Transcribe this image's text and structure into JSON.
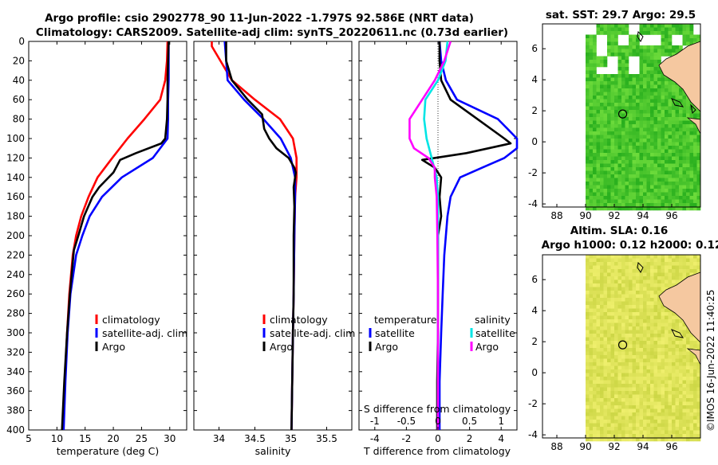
{
  "header": {
    "title_line1": "Argo profile: csio 2902778_90 11-Jun-2022 -1.797S 92.586E (NRT data)",
    "title_line2": "Climatology: CARS2009. Satellite-adj clim: synTS_20220611.nc (0.73d earlier)"
  },
  "colors": {
    "climatology": "#ff0000",
    "satellite": "#0000ff",
    "argo": "#000000",
    "sat_s": "#00e5e5",
    "argo_s": "#ff00ff",
    "land": "#f5c8a0",
    "sst_bg": "#22bb22",
    "sla_bg": "#d8e84a"
  },
  "depth_ticks": [
    "0",
    "20",
    "40",
    "60",
    "80",
    "100",
    "120",
    "140",
    "160",
    "180",
    "200",
    "220",
    "240",
    "260",
    "280",
    "300",
    "320",
    "340",
    "360",
    "380",
    "400"
  ],
  "chart_data": [
    {
      "type": "line",
      "name": "temperature",
      "xlabel": "temperature (deg C)",
      "xlim": [
        5,
        33
      ],
      "xticks": [
        "5",
        "10",
        "15",
        "20",
        "25",
        "30"
      ],
      "ylim": [
        0,
        400
      ],
      "legend": {
        "climatology": "climatology",
        "satellite": "satellite-adj. clim",
        "argo": "Argo"
      },
      "series": [
        {
          "name": "climatology",
          "color": "red",
          "depth": [
            0,
            20,
            40,
            60,
            80,
            100,
            120,
            140,
            160,
            180,
            200,
            220,
            260,
            300,
            350,
            400
          ],
          "values": [
            29.6,
            29.5,
            29.2,
            28.3,
            25.5,
            22.5,
            19.8,
            17.2,
            15.6,
            14.3,
            13.4,
            12.8,
            12.2,
            11.8,
            11.4,
            11.0
          ]
        },
        {
          "name": "satellite-adj. clim",
          "color": "blue",
          "depth": [
            0,
            20,
            40,
            60,
            80,
            100,
            120,
            140,
            160,
            180,
            200,
            220,
            260,
            300,
            350,
            400
          ],
          "values": [
            29.8,
            29.8,
            29.8,
            29.7,
            29.7,
            29.6,
            27.0,
            21.5,
            18.0,
            15.8,
            14.5,
            13.4,
            12.4,
            11.9,
            11.5,
            11.2
          ]
        },
        {
          "name": "Argo",
          "color": "black",
          "depth": [
            0,
            20,
            40,
            60,
            80,
            100,
            105,
            115,
            122,
            135,
            150,
            160,
            180,
            200,
            215,
            260,
            300,
            350,
            400
          ],
          "values": [
            29.8,
            29.7,
            29.6,
            29.6,
            29.5,
            29.2,
            28.5,
            24.0,
            21.2,
            20.0,
            17.5,
            16.3,
            14.8,
            13.8,
            13.0,
            12.3,
            11.8,
            11.3,
            10.9
          ]
        }
      ]
    },
    {
      "type": "line",
      "name": "salinity",
      "xlabel": "salinity",
      "xlim": [
        33.65,
        35.85
      ],
      "xticks": [
        "34",
        "34.5",
        "35",
        "35.5"
      ],
      "ylim": [
        0,
        400
      ],
      "legend": {
        "climatology": "climatology",
        "satellite": "satellite-adj. clim",
        "argo": "Argo"
      },
      "series": [
        {
          "name": "climatology",
          "color": "red",
          "depth": [
            0,
            5,
            20,
            40,
            60,
            80,
            100,
            120,
            140,
            160,
            200,
            260,
            300,
            350,
            400
          ],
          "values": [
            33.9,
            33.9,
            34.02,
            34.18,
            34.5,
            34.85,
            35.03,
            35.08,
            35.08,
            35.06,
            35.05,
            35.04,
            35.03,
            35.02,
            35.01
          ]
        },
        {
          "name": "satellite-adj. clim",
          "color": "blue",
          "depth": [
            0,
            20,
            40,
            60,
            80,
            100,
            120,
            140,
            160,
            200,
            260,
            300,
            350,
            400
          ],
          "values": [
            34.08,
            34.1,
            34.12,
            34.35,
            34.62,
            34.86,
            35.0,
            35.06,
            35.06,
            35.05,
            35.04,
            35.03,
            35.02,
            35.01
          ]
        },
        {
          "name": "Argo",
          "color": "black",
          "depth": [
            0,
            20,
            40,
            60,
            75,
            90,
            100,
            110,
            120,
            130,
            135,
            150,
            170,
            200,
            260,
            300,
            350,
            400
          ],
          "values": [
            34.1,
            34.1,
            34.18,
            34.4,
            34.6,
            34.63,
            34.7,
            34.8,
            34.97,
            35.05,
            35.07,
            35.04,
            35.05,
            35.04,
            35.04,
            35.03,
            35.02,
            35.01
          ]
        }
      ]
    },
    {
      "type": "line",
      "name": "difference from climatology",
      "xlabel": "T difference from climatology",
      "xlim": [
        -5,
        5
      ],
      "xticks": [
        "-4",
        "-2",
        "0",
        "2",
        "4"
      ],
      "top_axis_label": "S difference from climatology",
      "top_xlim": [
        -1.25,
        1.25
      ],
      "top_xticks": [
        "-1",
        "-0.5",
        "0",
        "0.5",
        "1"
      ],
      "ylim": [
        0,
        400
      ],
      "legend": {
        "temperature": "temperature",
        "salinity": "salinity",
        "t_sat": "satellite",
        "t_argo": "Argo",
        "s_sat": "satellite",
        "s_argo": "Argo"
      },
      "series": [
        {
          "name": "T satellite",
          "color": "blue",
          "axis": "T",
          "depth": [
            0,
            20,
            40,
            60,
            80,
            100,
            110,
            120,
            130,
            140,
            160,
            180,
            200,
            220,
            260,
            300,
            350,
            400
          ],
          "values": [
            0.1,
            0.2,
            0.5,
            1.2,
            3.8,
            5.0,
            5.0,
            4.2,
            2.8,
            1.4,
            0.8,
            0.6,
            0.5,
            0.4,
            0.3,
            0.2,
            0.1,
            0.1
          ]
        },
        {
          "name": "T Argo",
          "color": "black",
          "axis": "T",
          "depth": [
            0,
            20,
            40,
            60,
            80,
            100,
            105,
            115,
            122,
            130,
            140,
            160,
            180,
            200,
            260,
            300,
            350,
            400
          ],
          "values": [
            0.1,
            0.1,
            0.2,
            0.8,
            2.5,
            4.2,
            4.6,
            1.8,
            -1.0,
            -0.2,
            0.2,
            0.1,
            0.2,
            0.0,
            0.0,
            0.0,
            -0.05,
            -0.05
          ]
        },
        {
          "name": "S satellite",
          "color": "cyan",
          "axis": "S",
          "depth": [
            0,
            20,
            40,
            60,
            80,
            100,
            120,
            140,
            160,
            200,
            260,
            300,
            350,
            400
          ],
          "values": [
            0.15,
            0.12,
            0.0,
            -0.2,
            -0.22,
            -0.18,
            -0.1,
            -0.02,
            0.0,
            0.0,
            0.0,
            0.0,
            0.0,
            0.0
          ]
        },
        {
          "name": "S Argo",
          "color": "magenta",
          "axis": "S",
          "depth": [
            0,
            20,
            40,
            60,
            80,
            100,
            110,
            120,
            130,
            135,
            140,
            160,
            200,
            260,
            300,
            350,
            400
          ],
          "values": [
            0.2,
            0.1,
            -0.05,
            -0.25,
            -0.45,
            -0.45,
            -0.38,
            -0.15,
            -0.05,
            -0.05,
            -0.05,
            -0.02,
            -0.01,
            0.0,
            0.0,
            0.0,
            0.0
          ]
        }
      ]
    },
    {
      "type": "heatmap",
      "name": "sst",
      "title": "sat. SST: 29.7 Argo: 29.5",
      "xlim": [
        87,
        98
      ],
      "ylim": [
        -4.2,
        7.6
      ],
      "xticks": [
        "88",
        "90",
        "92",
        "94",
        "96"
      ],
      "yticks": [
        "-4",
        "-2",
        "0",
        "2",
        "4",
        "6"
      ],
      "argo_position": [
        92.586,
        1.797
      ]
    },
    {
      "type": "heatmap",
      "name": "sla",
      "title_line1": "Altim. SLA: 0.16",
      "title_line2": "Argo h1000: 0.12 h2000: 0.12",
      "xlim": [
        87,
        98
      ],
      "ylim": [
        -4.2,
        7.6
      ],
      "xticks": [
        "88",
        "90",
        "92",
        "94",
        "96"
      ],
      "yticks": [
        "-4",
        "-2",
        "0",
        "2",
        "4",
        "6"
      ],
      "argo_position": [
        92.586,
        1.797
      ]
    }
  ],
  "stamp": "©IMOS 16-Jun-2022 11:40:25"
}
